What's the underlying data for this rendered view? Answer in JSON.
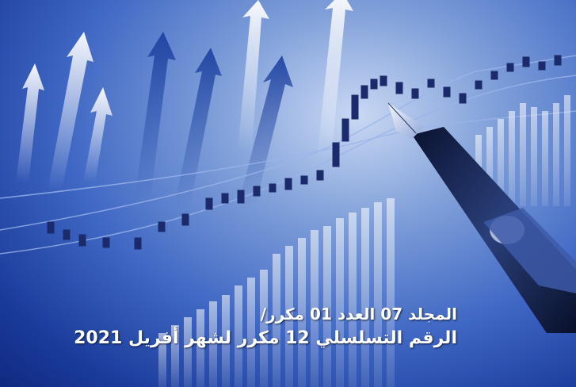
{
  "cover": {
    "volume_line": "المجلد 07 العدد 01  مكرر/",
    "serial_line": "الرقم التسلسلي 12 مكرر لشهر أفريل 2021"
  },
  "colors": {
    "background_dark": "#0f2a80",
    "background_light": "#c9d8f3",
    "text": "#ffffff"
  },
  "icons": [
    "upward-arrow-graphic",
    "fountain-pen",
    "candlestick-chart",
    "bar-chart"
  ]
}
